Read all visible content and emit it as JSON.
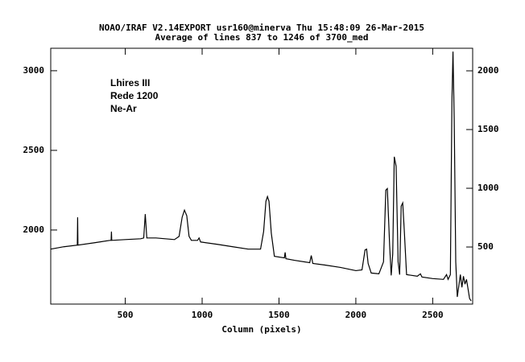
{
  "chart_data": {
    "type": "line",
    "title": "NOAO/IRAF V2.14EXPORT usr160@minerva Thu 15:48:09 26-Mar-2015",
    "subtitle": "Average of lines 837 to 1246 of 3700_med",
    "x_label": "Column (pixels)",
    "annotations": [
      "Lhires III",
      "Rede 1200",
      "Ne-Ar"
    ],
    "color": "#000000",
    "xlim": [
      15,
      2760
    ],
    "ylim": [
      1535,
      3141
    ],
    "y2lim": [
      14,
      2192
    ],
    "xticks": [
      500,
      1000,
      1500,
      2000,
      2500
    ],
    "yticks": [
      2000,
      2500,
      3000
    ],
    "y2ticks": [
      500,
      1000,
      1500,
      2000
    ],
    "x": [
      15,
      100,
      188,
      190,
      192,
      300,
      400,
      408,
      410,
      412,
      500,
      600,
      620,
      630,
      640,
      700,
      760,
      820,
      850,
      870,
      885,
      900,
      915,
      930,
      970,
      980,
      990,
      1100,
      1200,
      1300,
      1380,
      1400,
      1415,
      1425,
      1435,
      1450,
      1470,
      1535,
      1540,
      1545,
      1600,
      1700,
      1710,
      1720,
      1800,
      1900,
      2000,
      2040,
      2060,
      2070,
      2080,
      2100,
      2150,
      2180,
      2195,
      2205,
      2220,
      2230,
      2240,
      2250,
      2262,
      2275,
      2285,
      2295,
      2305,
      2315,
      2330,
      2400,
      2420,
      2430,
      2500,
      2570,
      2590,
      2600,
      2615,
      2625,
      2632,
      2640,
      2650,
      2660,
      2670,
      2680,
      2690,
      2700,
      2710,
      2720,
      2740,
      2750
    ],
    "values": [
      1880,
      1895,
      1905,
      2080,
      1905,
      1920,
      1935,
      1935,
      1990,
      1935,
      1940,
      1945,
      1950,
      2100,
      1950,
      1950,
      1945,
      1940,
      1960,
      2080,
      2125,
      2090,
      1960,
      1935,
      1935,
      1950,
      1925,
      1910,
      1895,
      1880,
      1880,
      1990,
      2180,
      2210,
      2180,
      1980,
      1835,
      1825,
      1860,
      1820,
      1810,
      1795,
      1840,
      1790,
      1780,
      1765,
      1745,
      1750,
      1875,
      1880,
      1790,
      1730,
      1725,
      1800,
      2250,
      2260,
      1900,
      1715,
      1850,
      2460,
      2400,
      1800,
      1720,
      2150,
      2170,
      2000,
      1720,
      1710,
      1725,
      1705,
      1695,
      1690,
      1720,
      1690,
      1720,
      2800,
      3120,
      2700,
      1800,
      1580,
      1650,
      1720,
      1640,
      1710,
      1660,
      1690,
      1570,
      1555
    ]
  }
}
